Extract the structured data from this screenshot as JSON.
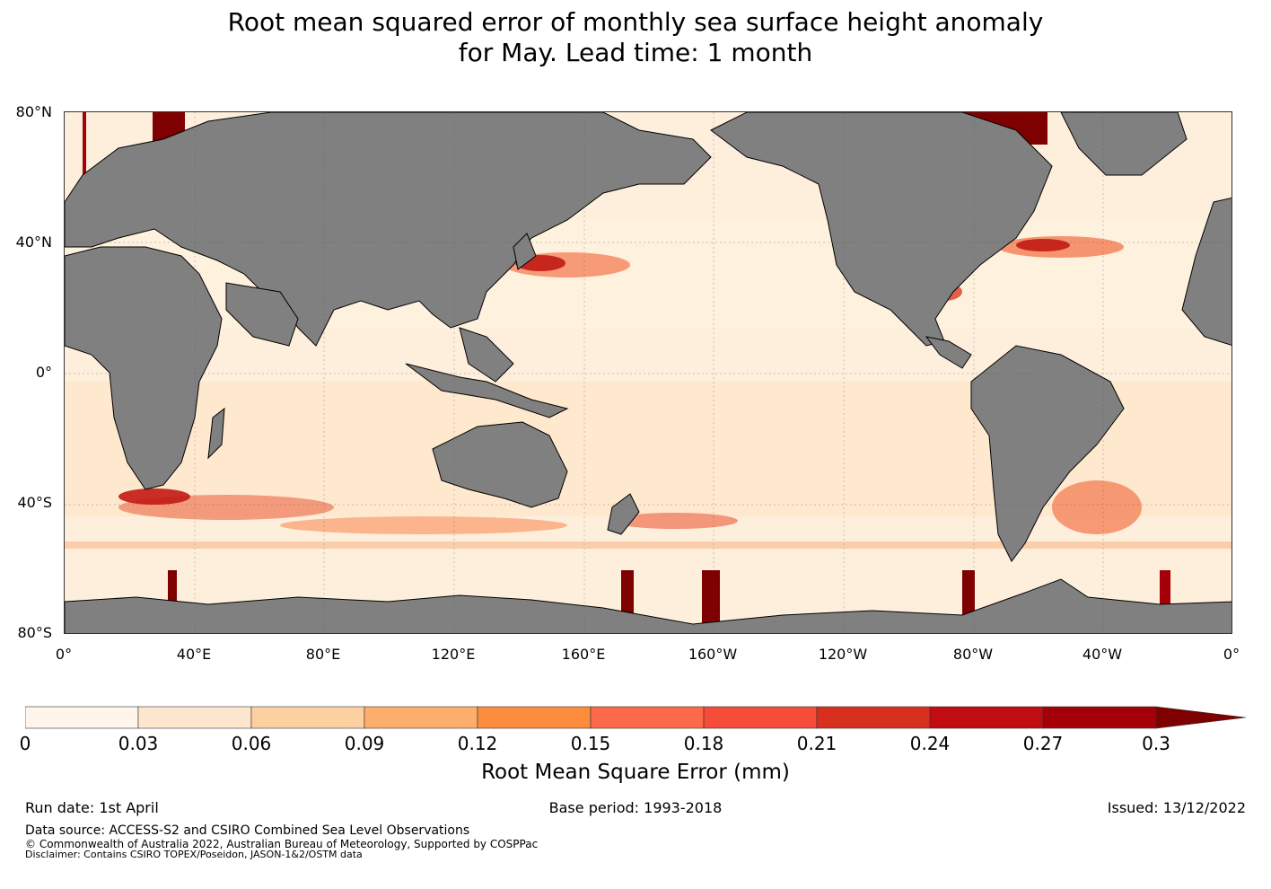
{
  "title": {
    "line1": "Root mean squared error of monthly sea surface height anomaly",
    "line2": "for May. Lead time: 1 month"
  },
  "map": {
    "lat_labels": [
      "80°N",
      "40°N",
      "0°",
      "40°S",
      "80°S"
    ],
    "lon_labels": [
      "0°",
      "40°E",
      "80°E",
      "120°E",
      "160°E",
      "160°W",
      "120°W",
      "80°W",
      "40°W",
      "0°"
    ],
    "land_color": "#808080",
    "ocean_base_color": "#fdefdc",
    "high_error_color": "#7f0000"
  },
  "colorbar": {
    "ticks": [
      "0",
      "0.03",
      "0.06",
      "0.09",
      "0.12",
      "0.15",
      "0.18",
      "0.21",
      "0.24",
      "0.27",
      "0.3"
    ],
    "colors": [
      "#fff5eb",
      "#fee6ce",
      "#fdd0a2",
      "#fdae6b",
      "#fd8d3c",
      "#fc6a4a",
      "#f54d3a",
      "#d7301f",
      "#c10c12",
      "#a50008",
      "#7f0000"
    ],
    "extend_color": "#7f0000",
    "label": "Root Mean Square Error (mm)"
  },
  "footer": {
    "run_date": "Run date: 1st April",
    "base_period": "Base period: 1993-2018",
    "issued": "Issued: 13/12/2022",
    "data_source": "Data source: ACCESS-S2 and CSIRO Combined Sea Level Observations",
    "copyright": "© Commonwealth of Australia 2022, Australian Bureau of Meteorology, Supported by COSPPac",
    "disclaimer": "Disclaimer: Contains CSIRO TOPEX/Poseidon, JASON-1&2/OSTM data"
  }
}
